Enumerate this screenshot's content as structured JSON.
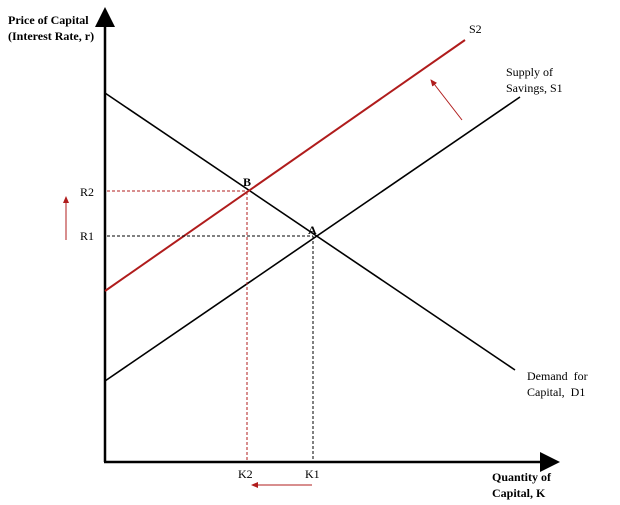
{
  "axes": {
    "y_label_line1": "Price of Capital",
    "y_label_line2": "(Interest Rate, r)",
    "x_label_line1": "Quantity of",
    "x_label_line2": "Capital, K"
  },
  "curves": {
    "s2": "S2",
    "s1_line1": "Supply of",
    "s1_line2": "Savings, S1",
    "d1_line1": "Demand for",
    "d1_line2": "Capital, D1"
  },
  "points": {
    "a": "A",
    "b": "B"
  },
  "ticks": {
    "r1": "R1",
    "r2": "R2",
    "k1": "K1",
    "k2": "K2"
  },
  "colors": {
    "axis": "#000000",
    "shift": "#b01c1c"
  }
}
